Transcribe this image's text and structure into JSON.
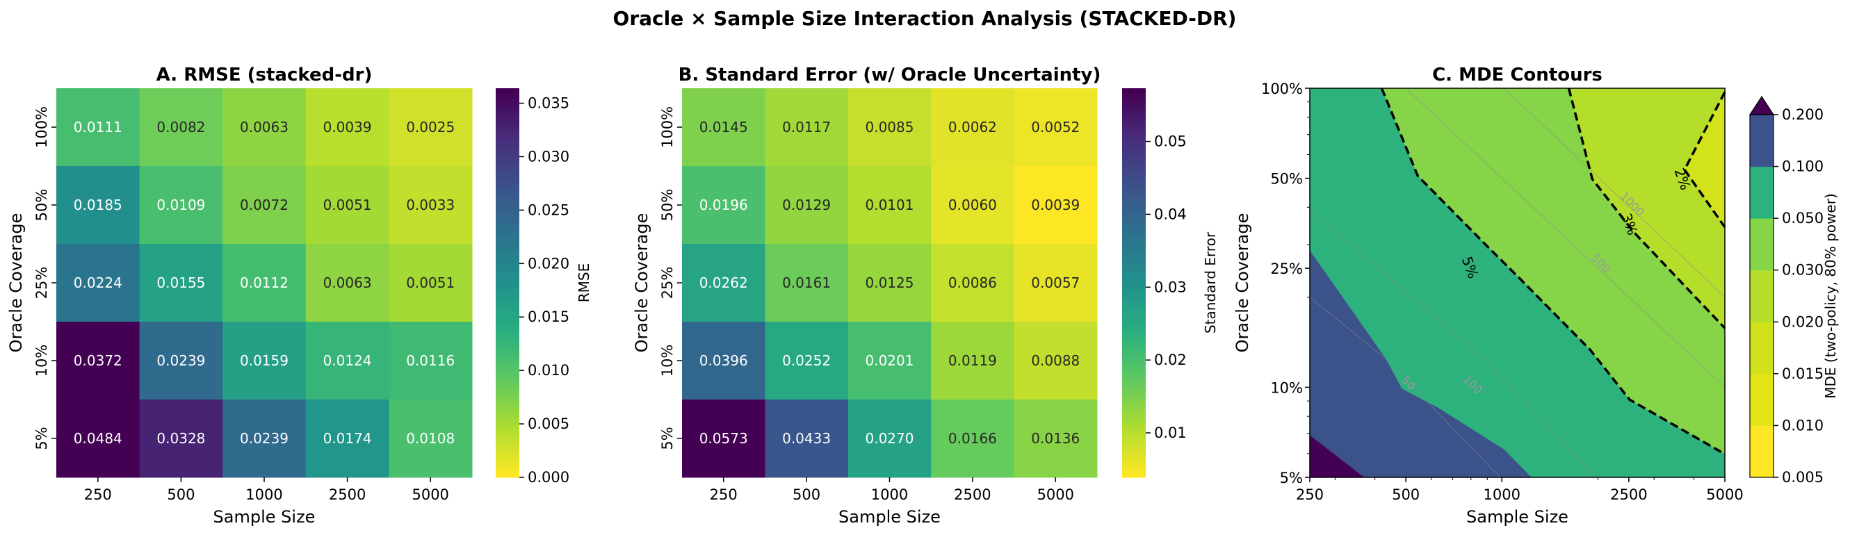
{
  "suptitle": "Oracle × Sample Size Interaction Analysis (STACKED-DR)",
  "chart_data": [
    {
      "type": "heatmap",
      "title": "A. RMSE (stacked-dr)",
      "xlabel": "Sample Size",
      "ylabel": "Oracle Coverage",
      "x_categories": [
        "250",
        "500",
        "1000",
        "2500",
        "5000"
      ],
      "y_categories": [
        "100%",
        "50%",
        "25%",
        "10%",
        "5%"
      ],
      "values": [
        [
          "0.0111",
          "0.0082",
          "0.0063",
          "0.0039",
          "0.0025"
        ],
        [
          "0.0185",
          "0.0109",
          "0.0072",
          "0.0051",
          "0.0033"
        ],
        [
          "0.0224",
          "0.0155",
          "0.0112",
          "0.0063",
          "0.0051"
        ],
        [
          "0.0372",
          "0.0239",
          "0.0159",
          "0.0124",
          "0.0116"
        ],
        [
          "0.0484",
          "0.0328",
          "0.0239",
          "0.0174",
          "0.0108"
        ]
      ],
      "colormap": "viridis_r",
      "colorbar": {
        "label": "RMSE",
        "vmin": 0.0,
        "vmax": 0.0364,
        "ticks": [
          {
            "value": 0.0,
            "label": "0.000"
          },
          {
            "value": 0.005,
            "label": "0.005"
          },
          {
            "value": 0.01,
            "label": "0.010"
          },
          {
            "value": 0.015,
            "label": "0.015"
          },
          {
            "value": 0.02,
            "label": "0.020"
          },
          {
            "value": 0.025,
            "label": "0.025"
          },
          {
            "value": 0.03,
            "label": "0.030"
          },
          {
            "value": 0.035,
            "label": "0.035"
          }
        ]
      }
    },
    {
      "type": "heatmap",
      "title": "B. Standard Error (w/ Oracle Uncertainty)",
      "xlabel": "Sample Size",
      "ylabel": "Oracle Coverage",
      "x_categories": [
        "250",
        "500",
        "1000",
        "2500",
        "5000"
      ],
      "y_categories": [
        "100%",
        "50%",
        "25%",
        "10%",
        "5%"
      ],
      "values": [
        [
          "0.0145",
          "0.0117",
          "0.0085",
          "0.0062",
          "0.0052"
        ],
        [
          "0.0196",
          "0.0129",
          "0.0101",
          "0.0060",
          "0.0039"
        ],
        [
          "0.0262",
          "0.0161",
          "0.0125",
          "0.0086",
          "0.0057"
        ],
        [
          "0.0396",
          "0.0252",
          "0.0201",
          "0.0119",
          "0.0088"
        ],
        [
          "0.0573",
          "0.0433",
          "0.0270",
          "0.0166",
          "0.0136"
        ]
      ],
      "colormap": "viridis_r",
      "colorbar": {
        "label": "Standard Error",
        "vmin": 0.0039,
        "vmax": 0.0573,
        "ticks": [
          {
            "value": 0.01,
            "label": "0.01"
          },
          {
            "value": 0.02,
            "label": "0.02"
          },
          {
            "value": 0.03,
            "label": "0.03"
          },
          {
            "value": 0.04,
            "label": "0.04"
          },
          {
            "value": 0.05,
            "label": "0.05"
          }
        ]
      }
    },
    {
      "type": "contour",
      "title": "C. MDE Contours",
      "xlabel": "Sample Size",
      "ylabel": "Oracle Coverage",
      "xscale": "log",
      "yscale": "log",
      "xlim": [
        250,
        5000
      ],
      "ylim": [
        0.05,
        1.0
      ],
      "x_ticks": [
        {
          "value": 250,
          "label": "250"
        },
        {
          "value": 500,
          "label": "500"
        },
        {
          "value": 1000,
          "label": "1000"
        },
        {
          "value": 2500,
          "label": "2500"
        },
        {
          "value": 5000,
          "label": "5000"
        }
      ],
      "y_ticks": [
        {
          "value": 0.05,
          "label": "5%"
        },
        {
          "value": 0.1,
          "label": "10%"
        },
        {
          "value": 0.25,
          "label": "25%"
        },
        {
          "value": 0.5,
          "label": "50%"
        },
        {
          "value": 1.0,
          "label": "100%"
        }
      ],
      "colorbar": {
        "label": "MDE (two-policy, 80% power)",
        "extend": "max",
        "extend_color": "#440154",
        "ticks": [
          "0.005",
          "0.010",
          "0.015",
          "0.020",
          "0.030",
          "0.050",
          "0.100",
          "0.200"
        ],
        "band_colors": [
          "#fde725",
          "#e2e418",
          "#d0e11c",
          "#b5de2b",
          "#86d549",
          "#2db27d",
          "#3b528b"
        ]
      },
      "background_band": {
        "range": "0.05-0.10",
        "color": "#2db27d"
      },
      "regions": [
        {
          "range": "0.10-0.20",
          "color": "#3b528b",
          "polygon": [
            [
              250,
              0.2868
            ],
            [
              434,
              0.1241
            ],
            [
              486,
              0.0989
            ],
            [
              628,
              0.0857
            ],
            [
              1016,
              0.062
            ],
            [
              1238,
              0.05
            ],
            [
              250,
              0.05
            ]
          ]
        },
        {
          "range": ">0.20",
          "color": "#440154",
          "polygon": [
            [
              250,
              0.0691
            ],
            [
              370,
              0.05
            ],
            [
              250,
              0.05
            ]
          ]
        },
        {
          "range": "0.03-0.05",
          "color": "#86d549",
          "polygon": [
            [
              420,
              1.0
            ],
            [
              545,
              0.509
            ],
            [
              907,
              0.2937
            ],
            [
              1137,
              0.2312
            ],
            [
              1893,
              0.1334
            ],
            [
              2513,
              0.091
            ],
            [
              5000,
              0.0598
            ],
            [
              5000,
              1.0
            ]
          ]
        },
        {
          "range": "0.02-0.03",
          "color": "#b5de2b",
          "polygon": [
            [
              1621,
              1.0
            ],
            [
              1920,
              0.497
            ],
            [
              2585,
              0.3311
            ],
            [
              5000,
              0.1577
            ],
            [
              5000,
              1.0
            ]
          ]
        },
        {
          "range": "0.015-0.02",
          "color": "#d2e21b",
          "polygon": [
            [
              5000,
              0.9716
            ],
            [
              3737,
              0.534
            ],
            [
              5000,
              0.343
            ]
          ]
        }
      ],
      "dashed_contours": [
        {
          "label": "5%",
          "label_at": [
            795,
            0.2515
          ],
          "points": [
            [
              420,
              1.0
            ],
            [
              545,
              0.509
            ],
            [
              907,
              0.2937
            ],
            [
              1137,
              0.2312
            ],
            [
              1893,
              0.1334
            ],
            [
              2513,
              0.091
            ],
            [
              5000,
              0.0598
            ]
          ]
        },
        {
          "label": "3%",
          "label_at": [
            2513,
            0.351
          ],
          "points": [
            [
              1621,
              1.0
            ],
            [
              1920,
              0.497
            ],
            [
              2585,
              0.3311
            ],
            [
              5000,
              0.1577
            ]
          ]
        },
        {
          "label": "2%",
          "label_at": [
            3683,
            0.497
          ],
          "points": [
            [
              5000,
              0.9716
            ],
            [
              3737,
              0.534
            ],
            [
              5000,
              0.343
            ]
          ]
        }
      ],
      "gray_contours": [
        {
          "label": "1000",
          "label_at": [
            2513,
            0.401
          ],
          "points": [
            [
              1016,
              1.0
            ],
            [
              5000,
              0.2003
            ]
          ]
        },
        {
          "label": "500",
          "label_at": [
            2005,
            0.2544
          ],
          "points": [
            [
              500,
              1.0
            ],
            [
              5000,
              0.1001
            ]
          ]
        },
        {
          "label": "100",
          "label_at": [
            795,
            0.1001
          ],
          "points": [
            [
              250,
              0.3915
            ],
            [
              881,
              0.1241
            ],
            [
              1976,
              0.05
            ]
          ]
        },
        {
          "label": "50",
          "label_at": [
            500,
            0.1012
          ],
          "points": [
            [
              250,
              0.2003
            ],
            [
              434,
              0.1241
            ],
            [
              987,
              0.05
            ]
          ]
        }
      ]
    }
  ]
}
